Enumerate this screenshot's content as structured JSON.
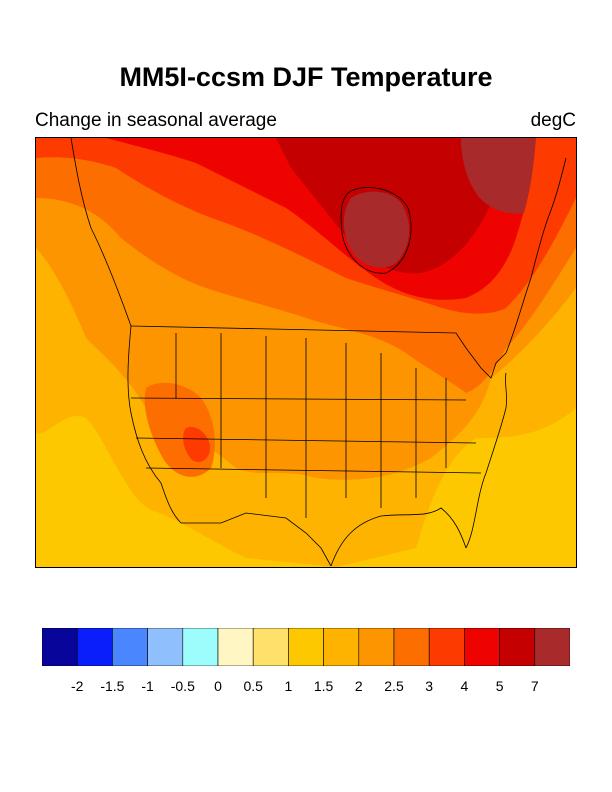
{
  "title": "MM5I-ccsm DJF Temperature",
  "subtitle": "Change in seasonal average",
  "units": "degC",
  "legend": {
    "colors": [
      "#08059b",
      "#0a1dfb",
      "#4a86fd",
      "#90bffd",
      "#9dfdfd",
      "#fff6c4",
      "#ffe06a",
      "#fdc800",
      "#fdb300",
      "#fd9500",
      "#fd6e00",
      "#fd3a00",
      "#ee0300",
      "#c50000",
      "#a82a2a"
    ],
    "ticks": [
      "-2",
      "-1.5",
      "-1",
      "-0.5",
      "0",
      "0.5",
      "1",
      "1.5",
      "2",
      "2.5",
      "3",
      "4",
      "5",
      "7"
    ]
  },
  "map_fields": {
    "levels_degC": [
      1.5,
      2,
      2.5,
      3,
      4,
      5,
      7
    ],
    "background_level": 1.5
  }
}
